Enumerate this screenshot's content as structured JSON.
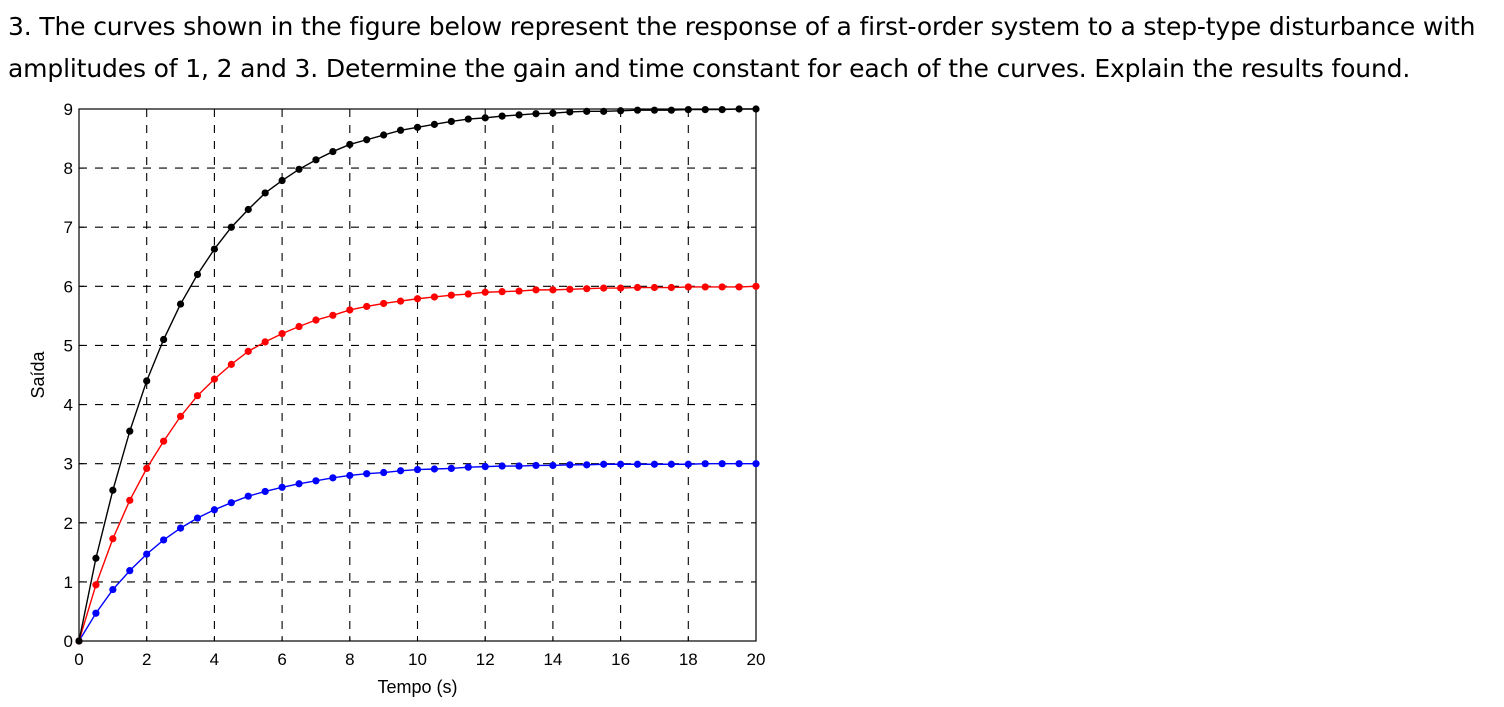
{
  "question": {
    "text": "3. The curves shown in the figure below represent the response of a first-order system to a step-type disturbance with amplitudes of 1, 2 and 3. Determine the gain and time constant for each of the curves. Explain the results found."
  },
  "chart_data": {
    "type": "line",
    "title": "",
    "xlabel": "Tempo (s)",
    "ylabel": "Saída",
    "xlim": [
      0,
      20
    ],
    "ylim": [
      0,
      9
    ],
    "xticks": [
      0,
      2,
      4,
      6,
      8,
      10,
      12,
      14,
      16,
      18,
      20
    ],
    "yticks": [
      0,
      1,
      2,
      3,
      4,
      5,
      6,
      7,
      8,
      9
    ],
    "grid": true,
    "legend": "none",
    "x": [
      0,
      0.5,
      1,
      1.5,
      2,
      2.5,
      3,
      3.5,
      4,
      4.5,
      5,
      5.5,
      6,
      6.5,
      7,
      7.5,
      8,
      8.5,
      9,
      9.5,
      10,
      10.5,
      11,
      11.5,
      12,
      12.5,
      13,
      13.5,
      14,
      14.5,
      15,
      15.5,
      16,
      16.5,
      17,
      17.5,
      18,
      18.5,
      19,
      19.5,
      20
    ],
    "series": [
      {
        "color": "#0000ff",
        "values": [
          0,
          0.47,
          0.87,
          1.19,
          1.47,
          1.71,
          1.91,
          2.08,
          2.22,
          2.34,
          2.45,
          2.53,
          2.6,
          2.66,
          2.71,
          2.76,
          2.8,
          2.83,
          2.85,
          2.88,
          2.9,
          2.91,
          2.92,
          2.94,
          2.95,
          2.96,
          2.96,
          2.97,
          2.97,
          2.98,
          2.98,
          2.99,
          2.99,
          2.99,
          2.99,
          2.99,
          2.99,
          3.0,
          3.0,
          3.0,
          3.0
        ]
      },
      {
        "color": "#ff0000",
        "values": [
          0,
          0.95,
          1.73,
          2.38,
          2.92,
          3.38,
          3.8,
          4.15,
          4.43,
          4.68,
          4.9,
          5.06,
          5.2,
          5.32,
          5.43,
          5.51,
          5.6,
          5.66,
          5.71,
          5.75,
          5.79,
          5.82,
          5.85,
          5.87,
          5.9,
          5.91,
          5.92,
          5.94,
          5.94,
          5.95,
          5.96,
          5.97,
          5.97,
          5.98,
          5.98,
          5.98,
          5.99,
          5.99,
          5.99,
          5.99,
          6.0
        ]
      },
      {
        "color": "#000000",
        "values": [
          0,
          1.4,
          2.55,
          3.55,
          4.4,
          5.1,
          5.7,
          6.2,
          6.63,
          7.0,
          7.3,
          7.58,
          7.79,
          7.98,
          8.14,
          8.28,
          8.4,
          8.48,
          8.56,
          8.64,
          8.69,
          8.74,
          8.79,
          8.83,
          8.85,
          8.88,
          8.9,
          8.92,
          8.93,
          8.95,
          8.96,
          8.96,
          8.97,
          8.98,
          8.98,
          8.98,
          8.99,
          8.99,
          8.99,
          9.0,
          9.0
        ]
      }
    ]
  }
}
